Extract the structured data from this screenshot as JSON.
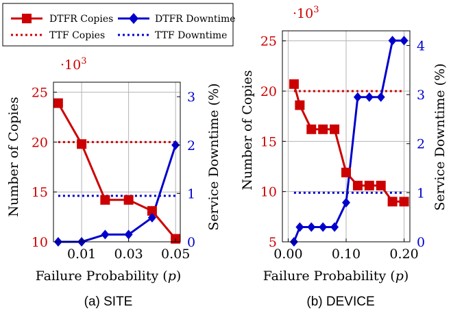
{
  "colors": {
    "red": "#cc0000",
    "blue": "#0000cc",
    "axis": "#000000",
    "grid": "#b3b3b3"
  },
  "legend": {
    "position": "top-left",
    "entries": [
      {
        "label": "DTFR Copies",
        "color": "#cc0000",
        "style": "solid",
        "marker": "square"
      },
      {
        "label": "DTFR Downtime",
        "color": "#0000cc",
        "style": "solid",
        "marker": "diamond"
      },
      {
        "label": "TTF Copies",
        "color": "#cc0000",
        "style": "dotted",
        "marker": "none"
      },
      {
        "label": "TTF Downtime",
        "color": "#0000cc",
        "style": "dotted",
        "marker": "none"
      }
    ]
  },
  "chart_data": [
    {
      "type": "line",
      "caption": "(a) SITE",
      "xlabel_text": "Failure Probability (",
      "xlabel_var": "p",
      "xlabel_close": ")",
      "ylabel_left": "Number of Copies",
      "ylabel_right": "Service Downtime (%)",
      "scale_label_base": "·10",
      "scale_label_exp": "3",
      "xlim": [
        -0.002,
        0.052
      ],
      "xticks": [
        0.01,
        0.03,
        0.05
      ],
      "xtick_labels": [
        "0.01",
        "0.03",
        "0.05"
      ],
      "ylim_left": [
        10,
        26
      ],
      "yticks_left": [
        10,
        15,
        20,
        25
      ],
      "ylim_right": [
        0,
        3.3
      ],
      "yticks_right": [
        0,
        1,
        2,
        3
      ],
      "grid": true,
      "series": [
        {
          "name": "DTFR Copies",
          "axis": "left",
          "x": [
            0.0,
            0.01,
            0.02,
            0.03,
            0.04,
            0.05
          ],
          "y": [
            23.9,
            19.8,
            14.2,
            14.2,
            13.1,
            10.3
          ]
        },
        {
          "name": "DTFR Downtime",
          "axis": "right",
          "x": [
            0.0,
            0.01,
            0.02,
            0.03,
            0.04,
            0.05
          ],
          "y": [
            0.0,
            0.0,
            0.15,
            0.15,
            0.5,
            2.0
          ]
        },
        {
          "name": "TTF Copies",
          "axis": "left",
          "x": [
            0.0,
            0.05
          ],
          "y": [
            20.0,
            20.0
          ]
        },
        {
          "name": "TTF Downtime",
          "axis": "right",
          "x": [
            0.0,
            0.05
          ],
          "y": [
            0.95,
            0.95
          ]
        }
      ]
    },
    {
      "type": "line",
      "caption": "(b) DEVICE",
      "xlabel_text": "Failure Probability (",
      "xlabel_var": "p",
      "xlabel_close": ")",
      "ylabel_left": "Number of Copies",
      "ylabel_right": "Service Downtime (%)",
      "scale_label_base": "·10",
      "scale_label_exp": "3",
      "xlim": [
        -0.01,
        0.21
      ],
      "xticks": [
        0.0,
        0.1,
        0.2
      ],
      "xtick_labels": [
        "0.00",
        "0.10",
        "0.20"
      ],
      "ylim_left": [
        5,
        26
      ],
      "yticks_left": [
        5,
        10,
        15,
        20,
        25
      ],
      "ylim_right": [
        0,
        4.3
      ],
      "yticks_right": [
        0,
        1,
        2,
        3,
        4
      ],
      "grid": true,
      "series": [
        {
          "name": "DTFR Copies",
          "axis": "left",
          "x": [
            0.01,
            0.02,
            0.04,
            0.06,
            0.08,
            0.1,
            0.12,
            0.14,
            0.16,
            0.18,
            0.2
          ],
          "y": [
            20.7,
            18.6,
            16.2,
            16.2,
            16.2,
            11.9,
            10.6,
            10.6,
            10.6,
            9.0,
            9.0
          ]
        },
        {
          "name": "DTFR Downtime",
          "axis": "right",
          "x": [
            0.01,
            0.02,
            0.04,
            0.06,
            0.08,
            0.1,
            0.12,
            0.14,
            0.16,
            0.18,
            0.2
          ],
          "y": [
            0.0,
            0.3,
            0.3,
            0.3,
            0.3,
            0.8,
            2.95,
            2.95,
            2.95,
            4.1,
            4.1
          ]
        },
        {
          "name": "TTF Copies",
          "axis": "left",
          "x": [
            0.01,
            0.2
          ],
          "y": [
            20.0,
            20.0
          ]
        },
        {
          "name": "TTF Downtime",
          "axis": "right",
          "x": [
            0.01,
            0.2
          ],
          "y": [
            1.0,
            1.0
          ]
        }
      ]
    }
  ]
}
